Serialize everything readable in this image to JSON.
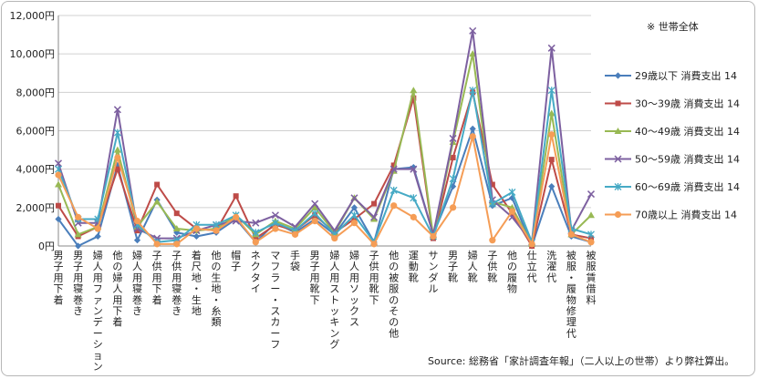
{
  "chart_data": {
    "type": "line",
    "note": "※ 世帯全体",
    "source": "Source: 総務省「家計調査年報」（二人以上の世帯）より弊社算出。",
    "ylim": [
      0,
      12000
    ],
    "yticks": [
      "0円",
      "2,000円",
      "4,000円",
      "6,000円",
      "8,000円",
      "10,000円",
      "12,000円"
    ],
    "ytick_values": [
      0,
      2000,
      4000,
      6000,
      8000,
      10000,
      12000
    ],
    "grid": true,
    "legend_position": "right",
    "categories": [
      "男子用下着",
      "男子用寝巻き",
      "婦人用ファンデーション",
      "他の婦人用下着",
      "婦人用寝巻き",
      "子供用下着",
      "子供用寝巻き",
      "着尺地・生地",
      "他の生地・糸類",
      "帽子",
      "ネクタイ",
      "マフラー・スカーフ",
      "手袋",
      "男子用靴下",
      "婦人用ストッキング",
      "婦人用ソックス",
      "子供用靴下",
      "他の被服のその他",
      "運動靴",
      "サンダル",
      "男子靴",
      "婦人靴",
      "子供靴",
      "他の履物",
      "仕立代",
      "洗濯代",
      "被服・履物修理代",
      "被服賃借料"
    ],
    "series": [
      {
        "name": "29歳以下 消費支出 14",
        "color": "#4a7ebb",
        "marker": "diamond",
        "values": [
          1400,
          0,
          500,
          4200,
          300,
          2400,
          700,
          500,
          700,
          1400,
          200,
          1200,
          700,
          1400,
          600,
          2000,
          200,
          4000,
          4100,
          600,
          3100,
          6100,
          2100,
          2500,
          0,
          3100,
          500,
          200
        ]
      },
      {
        "name": "30～39歳 消費支出 14",
        "color": "#be4b48",
        "marker": "square",
        "values": [
          2100,
          500,
          1000,
          4000,
          800,
          3200,
          1700,
          900,
          800,
          2600,
          400,
          1100,
          800,
          1600,
          700,
          1400,
          2200,
          4200,
          7700,
          400,
          4600,
          8000,
          3200,
          1700,
          0,
          4500,
          600,
          400
        ]
      },
      {
        "name": "40～49歳 消費支出 14",
        "color": "#98b954",
        "marker": "triangle",
        "values": [
          3200,
          600,
          1000,
          5000,
          1000,
          2300,
          900,
          800,
          900,
          1600,
          600,
          1300,
          900,
          2000,
          700,
          2500,
          1400,
          3900,
          8100,
          500,
          5400,
          10000,
          2300,
          2000,
          100,
          6900,
          600,
          1600
        ]
      },
      {
        "name": "50～59歳 消費支出 14",
        "color": "#7d60a0",
        "marker": "x",
        "values": [
          4300,
          1200,
          1200,
          7100,
          900,
          400,
          400,
          800,
          1100,
          1300,
          1200,
          1600,
          1000,
          2200,
          800,
          2500,
          1500,
          4000,
          4000,
          600,
          5600,
          11200,
          2400,
          1500,
          200,
          10300,
          800,
          2700
        ]
      },
      {
        "name": "60～69歳 消費支出 14",
        "color": "#46aac5",
        "marker": "star",
        "values": [
          4000,
          1400,
          1400,
          5900,
          1100,
          200,
          300,
          1100,
          1100,
          1600,
          700,
          1200,
          800,
          1700,
          600,
          1600,
          200,
          2900,
          2500,
          500,
          3500,
          8100,
          2200,
          2800,
          200,
          8100,
          900,
          600
        ]
      },
      {
        "name": "70歳以上 消費支出 14",
        "color": "#f59d56",
        "marker": "circle",
        "values": [
          3700,
          1500,
          900,
          4600,
          1300,
          100,
          100,
          900,
          800,
          1500,
          200,
          900,
          600,
          1300,
          400,
          1200,
          100,
          2100,
          1500,
          500,
          2000,
          5700,
          300,
          1800,
          100,
          5800,
          600,
          200
        ]
      }
    ]
  }
}
